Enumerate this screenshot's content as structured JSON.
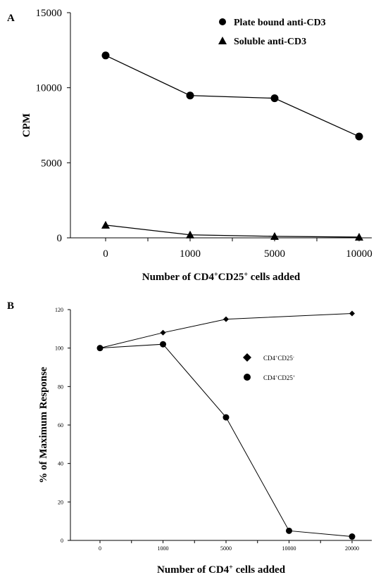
{
  "chart_data": [
    {
      "panel": "A",
      "type": "line",
      "categories": [
        "0",
        "1000",
        "5000",
        "10000"
      ],
      "ylabel": "CPM",
      "xlabel": {
        "pre": "Number of CD4",
        "sup": "+",
        "mid": "CD25",
        "sup2": "+",
        "post": " cells added"
      },
      "ylim": [
        0,
        15000
      ],
      "yticks": [
        "0",
        "5000",
        "10000",
        "15000"
      ],
      "grid": false,
      "legend_position": "top-right",
      "series": [
        {
          "name": "Plate bound anti-CD3",
          "marker": "circle",
          "values": [
            12150,
            9480,
            9300,
            6750
          ]
        },
        {
          "name": "Soluble anti-CD3",
          "marker": "triangle",
          "values": [
            850,
            200,
            100,
            50
          ]
        }
      ]
    },
    {
      "panel": "B",
      "type": "line",
      "categories": [
        "0",
        "1000",
        "5000",
        "10000",
        "20000"
      ],
      "ylabel": "% of Maximum Response",
      "xlabel": {
        "pre": "Number of CD4",
        "sup": "+",
        "post": " cells added"
      },
      "ylim": [
        0,
        120
      ],
      "yticks": [
        "0",
        "20",
        "40",
        "60",
        "80",
        "100",
        "120"
      ],
      "grid": false,
      "legend_position": "middle-right",
      "series": [
        {
          "name": {
            "pre": "CD4",
            "sup": "+",
            "mid": "CD25",
            "sup2": "-"
          },
          "marker": "diamond",
          "values": [
            100,
            108,
            115,
            null,
            118
          ]
        },
        {
          "name": {
            "pre": "CD4",
            "sup": "+",
            "mid": "CD25",
            "sup2": "+"
          },
          "marker": "circle",
          "values": [
            100,
            102,
            64,
            5,
            2
          ]
        }
      ]
    }
  ]
}
